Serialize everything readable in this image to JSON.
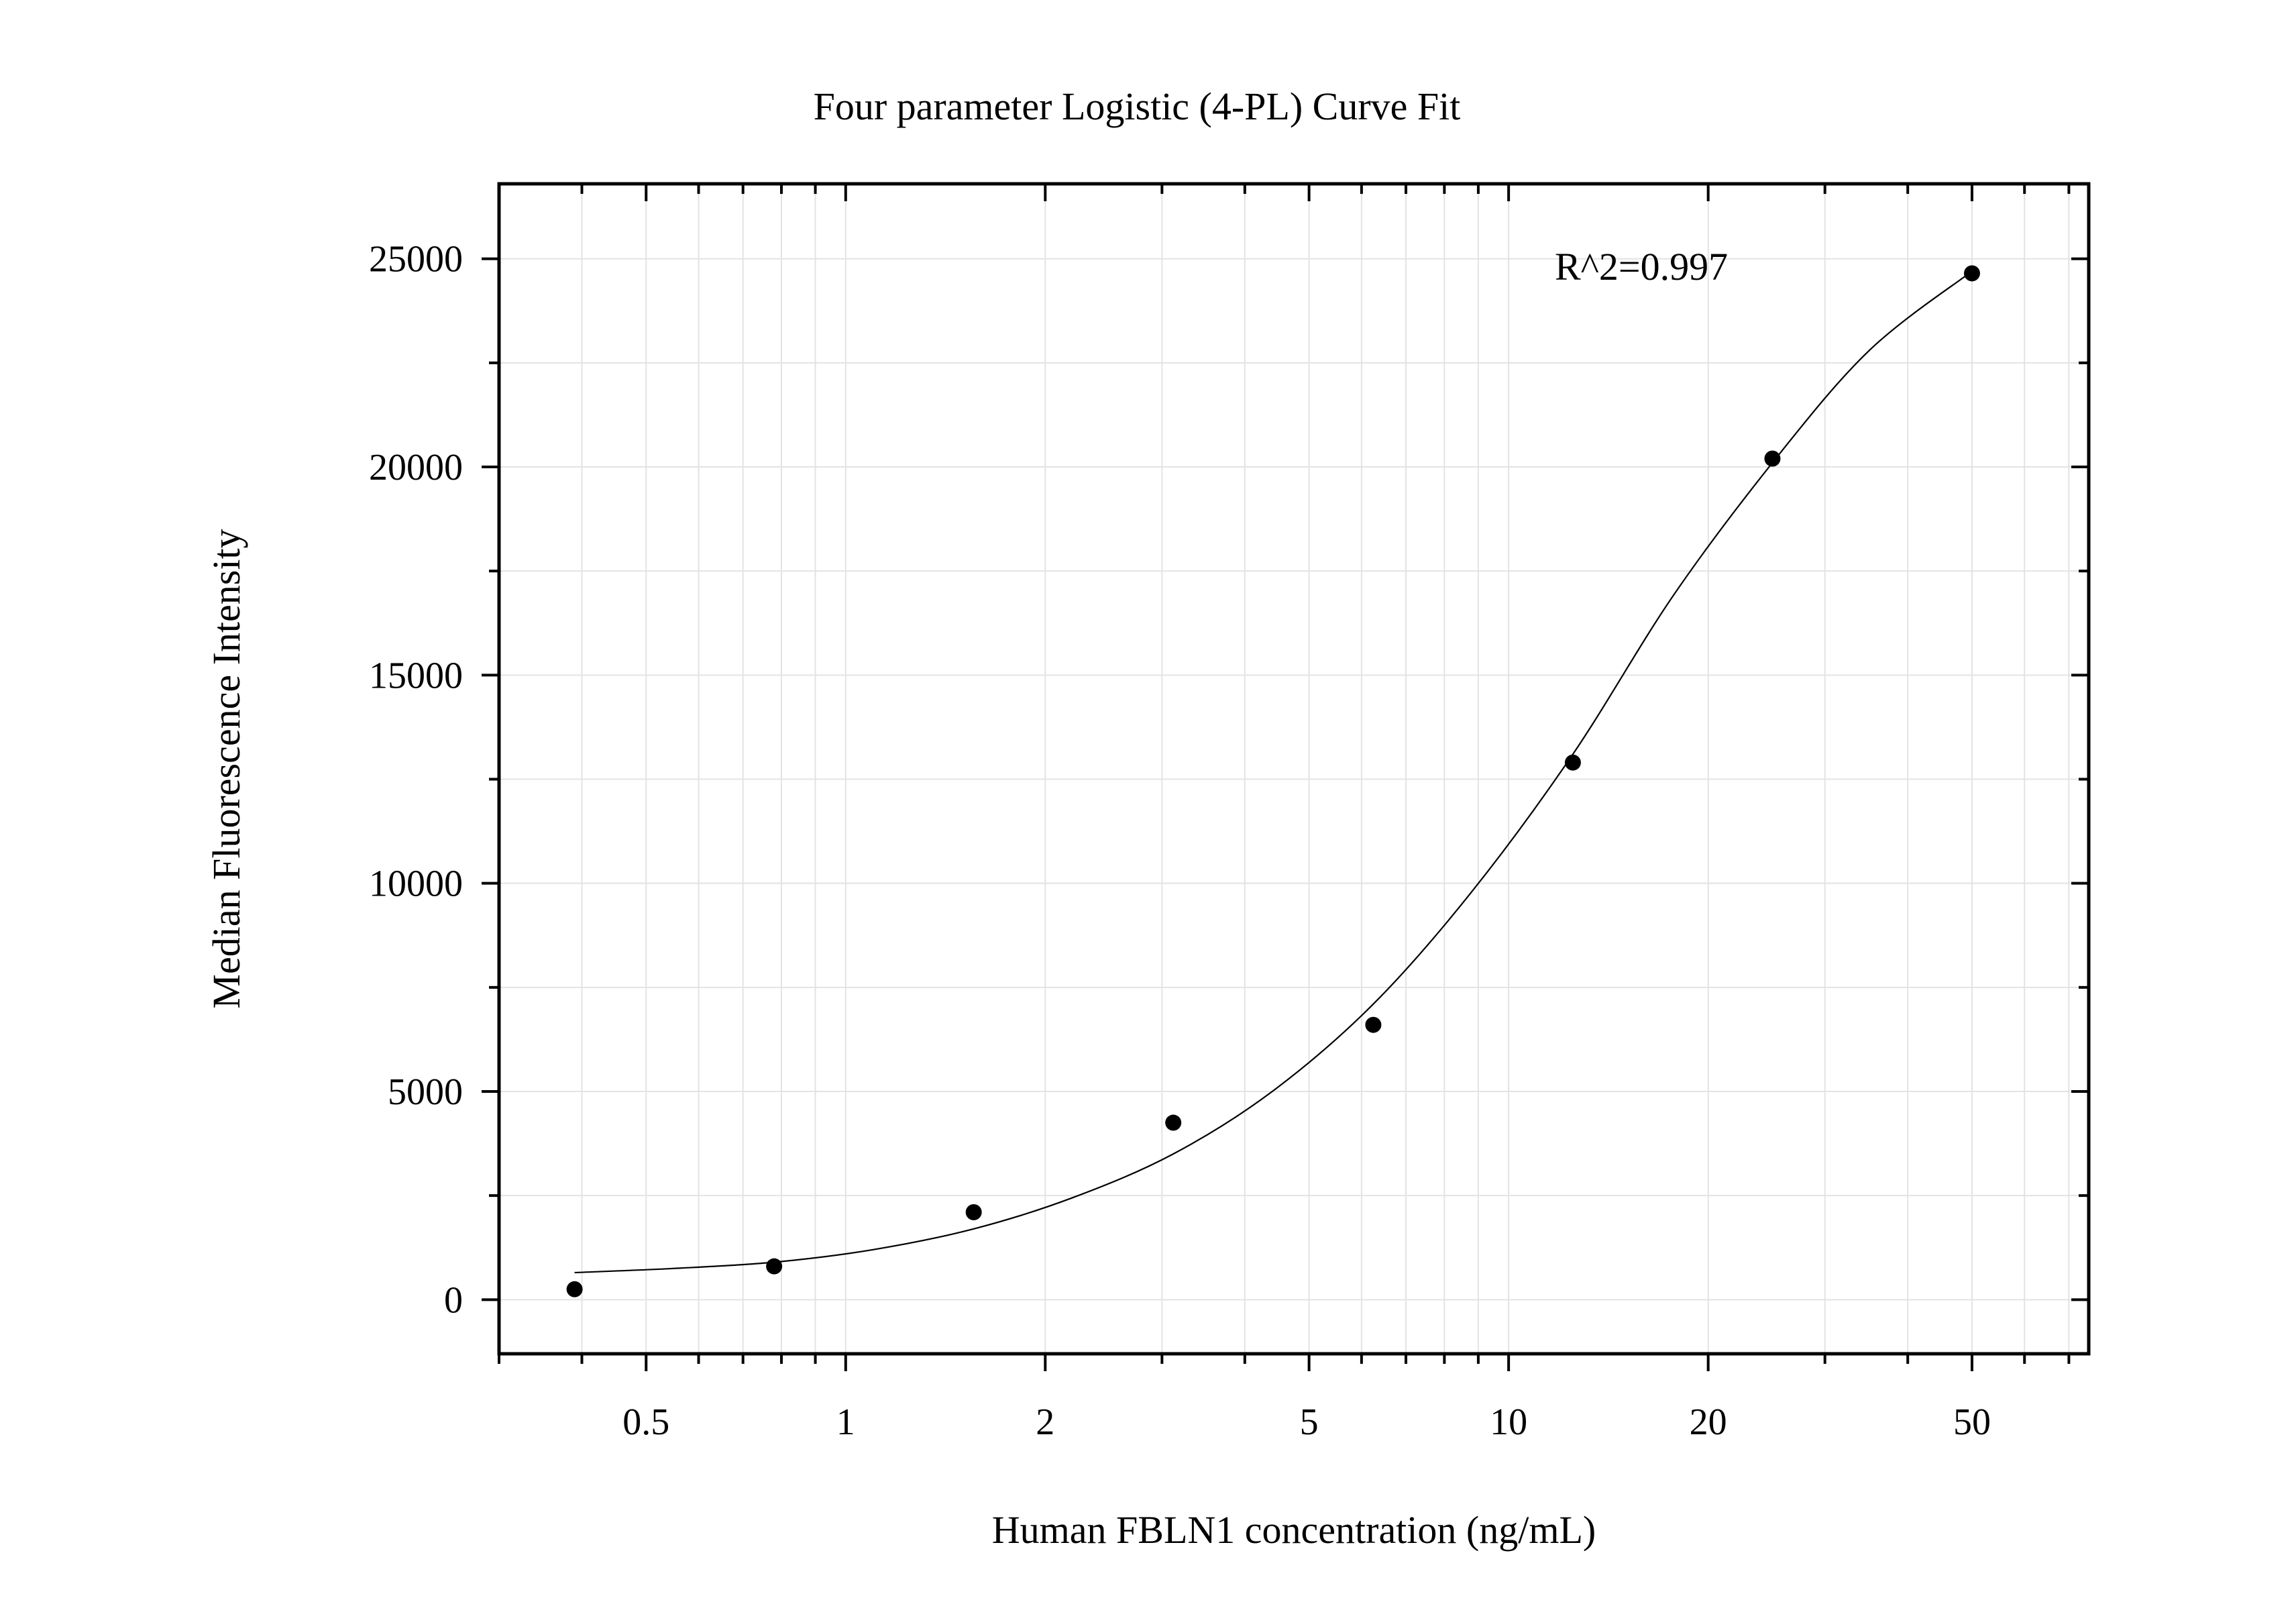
{
  "chart_data": {
    "type": "scatter",
    "title": "Four parameter Logistic (4-PL) Curve Fit",
    "xlabel": "Human FBLN1 concentration (ng/mL)",
    "ylabel": "Median Fluorescence Intensity",
    "x_scale": "log",
    "xlim": [
      0.3,
      75
    ],
    "ylim": [
      -1300,
      26800
    ],
    "x_ticks": [
      0.5,
      1,
      2,
      5,
      10,
      20,
      50
    ],
    "x_tick_labels": [
      "0.5",
      "1",
      "2",
      "5",
      "10",
      "20",
      "50"
    ],
    "y_ticks": [
      0,
      5000,
      10000,
      15000,
      20000,
      25000
    ],
    "y_tick_labels": [
      "0",
      "5000",
      "10000",
      "15000",
      "20000",
      "25000"
    ],
    "grid": true,
    "annotation": "R^2=0.997",
    "points": {
      "x": [
        0.39,
        0.78,
        1.56,
        3.12,
        6.25,
        12.5,
        25,
        50
      ],
      "y": [
        250,
        800,
        2100,
        4250,
        6600,
        12900,
        20200,
        24650
      ]
    },
    "fit_curve": {
      "x": [
        0.39,
        0.55,
        0.78,
        1.1,
        1.56,
        2.2,
        3.12,
        4.4,
        6.25,
        8.8,
        12.5,
        17.7,
        25,
        35,
        50
      ],
      "y": [
        650,
        750,
        900,
        1200,
        1700,
        2450,
        3500,
        5000,
        7100,
        9800,
        13100,
        16900,
        20100,
        22800,
        24700
      ]
    },
    "colors": {
      "points": "#000000",
      "curve": "#000000",
      "grid": "#e3e3e3"
    }
  }
}
